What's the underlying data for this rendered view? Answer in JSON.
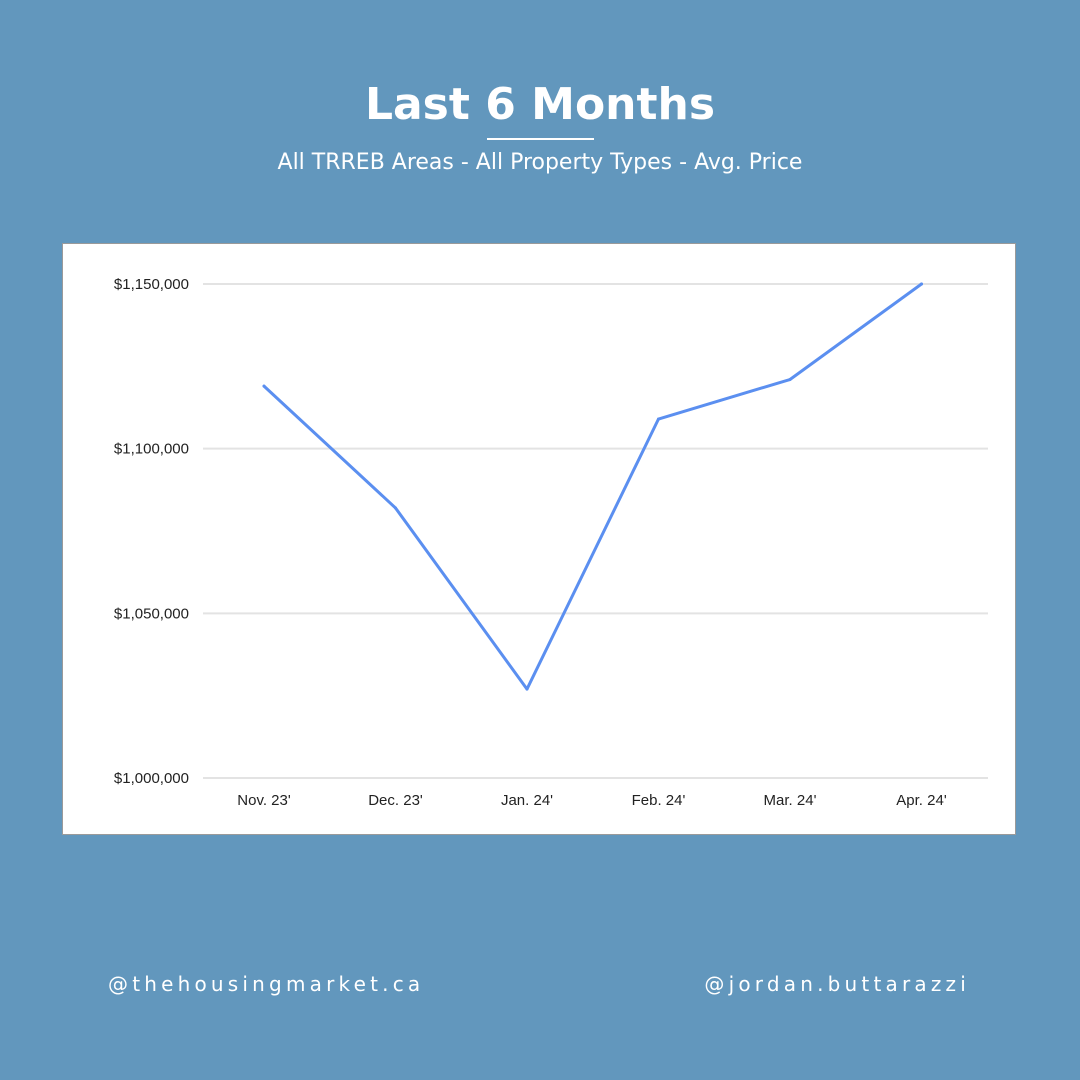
{
  "header": {
    "title": "Last 6 Months",
    "subtitle": "All TRREB Areas - All Property Types - Avg. Price"
  },
  "footer": {
    "left_handle": "@thehousingmarket.ca",
    "right_handle": "@jordan.buttarazzi"
  },
  "colors": {
    "background": "#6297bd",
    "line": "#5b8ff0",
    "grid": "#e3e3e3"
  },
  "chart_data": {
    "type": "line",
    "title": "",
    "xlabel": "",
    "ylabel": "",
    "categories": [
      "Nov. 23'",
      "Dec. 23'",
      "Jan. 24'",
      "Feb. 24'",
      "Mar. 24'",
      "Apr. 24'"
    ],
    "series": [
      {
        "values": [
          1119000,
          1082000,
          1027000,
          1109000,
          1121000,
          1150000
        ]
      }
    ],
    "ylim": [
      1000000,
      1150000
    ],
    "yticks": [
      1000000,
      1050000,
      1100000,
      1150000
    ],
    "ytick_labels": [
      "$1,000,000",
      "$1,050,000",
      "$1,100,000",
      "$1,150,000"
    ],
    "grid": true,
    "legend": "none"
  }
}
